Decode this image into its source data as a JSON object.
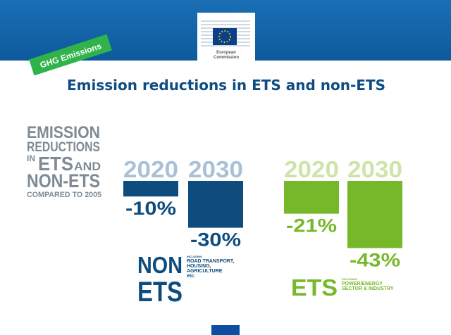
{
  "header": {
    "logo_line1": "European",
    "logo_line2": "Commission",
    "badge": "GHG Emissions"
  },
  "title": "Emission reductions in ETS and non-ETS",
  "side_heading": {
    "line1": "EMISSION",
    "line2": "REDUCTIONS",
    "line3_in": "IN",
    "line3_ets": "ETS",
    "line3_and": "AND",
    "line4": "NON-ETS",
    "line5": "COMPARED TO 2005"
  },
  "chart_data": [
    {
      "type": "bar",
      "categories": [
        "2020",
        "2030"
      ],
      "values": [
        -10,
        -30
      ],
      "value_labels": [
        "-10%",
        "-30%"
      ],
      "color": "#0e4c7d",
      "year_color": "#a9c1d6",
      "caption": "NON",
      "caption2": "ETS",
      "note_prefix": "INCLUDING",
      "note": [
        "ROAD TRANSPORT,",
        "HOUSING,",
        "AGRICULTURE",
        "etc."
      ]
    },
    {
      "type": "bar",
      "categories": [
        "2020",
        "2030"
      ],
      "values": [
        -21,
        -43
      ],
      "value_labels": [
        "-21%",
        "-43%"
      ],
      "color": "#76b82a",
      "year_color": "#cfe3ab",
      "caption": "ETS",
      "note_prefix": "INCLUDING",
      "note": [
        "POWER/ENERGY",
        "SECTOR & INDUSTRY"
      ]
    }
  ]
}
